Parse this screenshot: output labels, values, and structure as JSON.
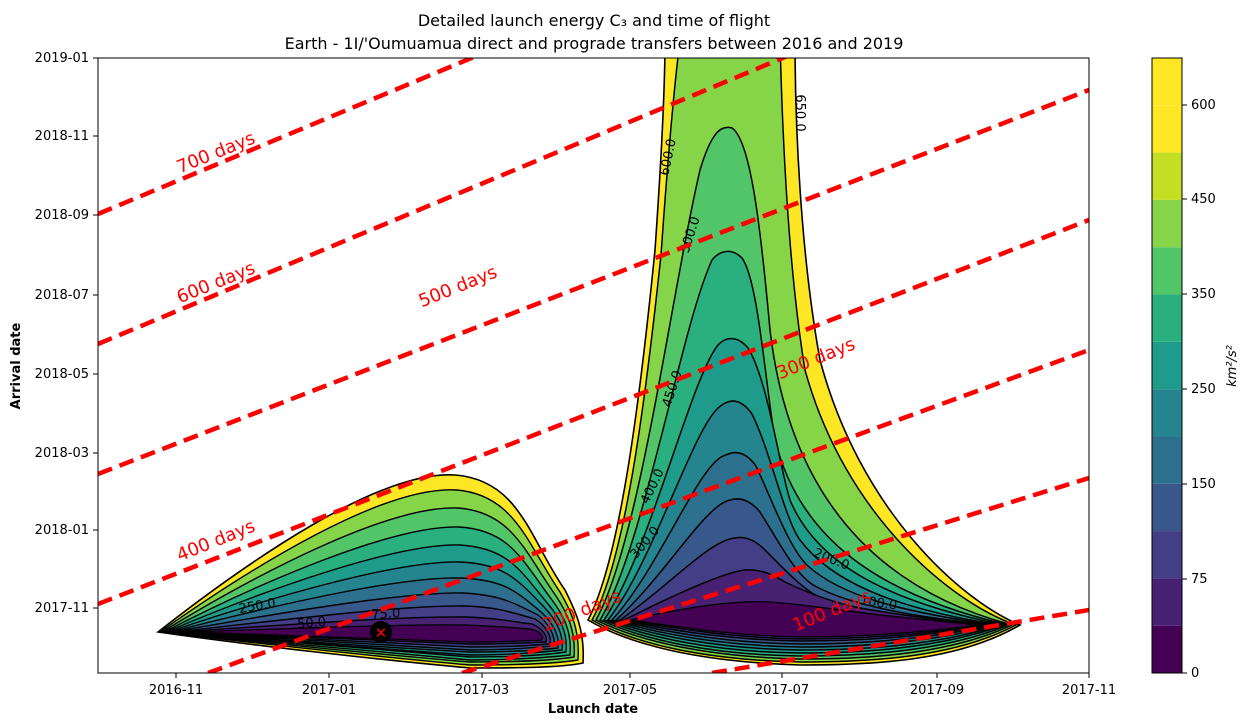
{
  "chart_data": {
    "type": "contour",
    "title": "Detailed launch energy C₃ and time of flight",
    "subtitle": "Earth - 1I/'Oumuamua direct and prograde transfers between 2016 and 2019",
    "xlabel": "Launch date",
    "ylabel": "Arrival date",
    "x_ticks": [
      "2016-11",
      "2017-01",
      "2017-03",
      "2017-05",
      "2017-07",
      "2017-09",
      "2017-11"
    ],
    "y_ticks": [
      "2017-11",
      "2018-01",
      "2018-03",
      "2018-05",
      "2018-07",
      "2018-09",
      "2018-11",
      "2019-01"
    ],
    "xlim": [
      "2016-10",
      "2017-11"
    ],
    "ylim": [
      "2017-09-20",
      "2019-01"
    ],
    "grid": false,
    "colorbar": {
      "label": "km²/s²",
      "ticks": [
        0,
        75,
        150,
        250,
        350,
        450,
        600
      ],
      "levels": [
        0,
        25,
        50,
        75,
        100,
        150,
        200,
        250,
        300,
        350,
        400,
        450,
        500,
        600,
        650
      ],
      "colors": [
        "#440154",
        "#482173",
        "#433e85",
        "#38588c",
        "#2d708e",
        "#25858e",
        "#1e9b8a",
        "#2ab07f",
        "#52c569",
        "#86d549",
        "#c2df23",
        "#fde725"
      ]
    },
    "contour_labels": [
      "650.0",
      "600.0",
      "500.0",
      "450.0",
      "400.0",
      "300.0",
      "200.0",
      "100.0",
      "250.0",
      "75.0",
      "50.0"
    ],
    "tof_lines": {
      "color": "#ff0000",
      "style": "dashed",
      "labels": [
        "700 days",
        "600 days",
        "500 days",
        "400 days",
        "300 days",
        "200 days",
        "100 days"
      ]
    },
    "minimum_marker": {
      "launch": "2017-01-23",
      "arrival": "2017-10-15",
      "color": "#ff0000"
    }
  }
}
